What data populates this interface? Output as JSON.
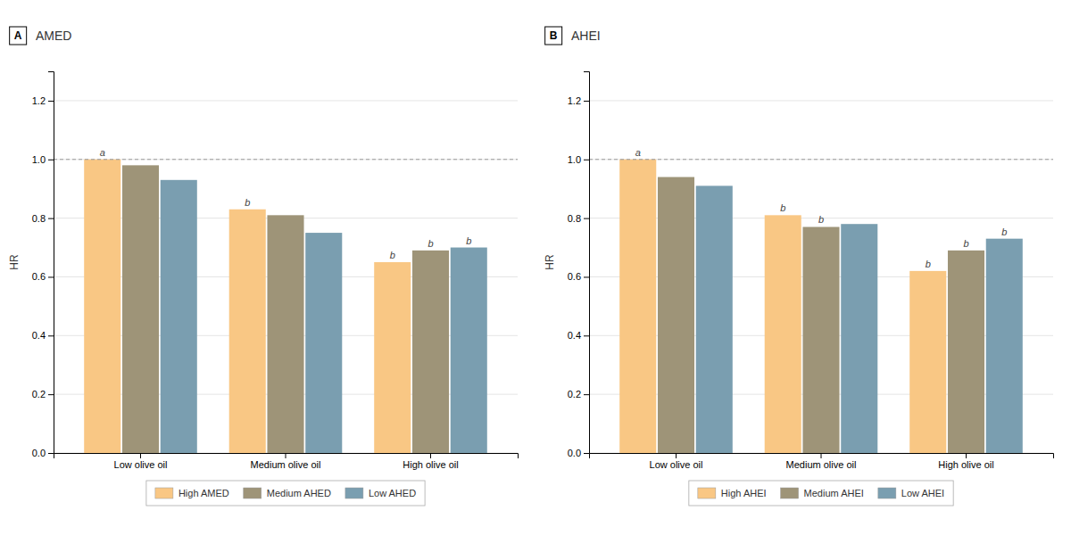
{
  "chart_data": [
    {
      "type": "bar",
      "panel_label": "A",
      "title": "AMED",
      "categories": [
        "Low olive oil",
        "Medium olive oil",
        "High olive oil"
      ],
      "series": [
        {
          "name": "High AMED",
          "color": "#F9C784",
          "values": [
            1.0,
            0.83,
            0.65
          ]
        },
        {
          "name": "Medium AHED",
          "color": "#9E9478",
          "values": [
            0.98,
            0.81,
            0.69
          ]
        },
        {
          "name": "Low AHED",
          "color": "#7A9EB0",
          "values": [
            0.93,
            0.75,
            0.7
          ]
        }
      ],
      "annotations": [
        [
          "a",
          null,
          null
        ],
        [
          "b",
          null,
          null
        ],
        [
          "b",
          "b",
          "b"
        ]
      ],
      "ylabel": "HR",
      "ylim": [
        0,
        1.3
      ],
      "yticks": [
        {
          "value": 0,
          "label": "0.0"
        },
        0.2,
        0.4,
        0.6,
        0.8,
        {
          "value": 1.0,
          "label": "1.0"
        },
        1.2
      ],
      "reference_line": 1.0,
      "grid": true,
      "legend": "bottom"
    },
    {
      "type": "bar",
      "panel_label": "B",
      "title": "AHEI",
      "categories": [
        "Low olive oil",
        "Medium olive oil",
        "High olive oil"
      ],
      "series": [
        {
          "name": "High AHEI",
          "color": "#F9C784",
          "values": [
            1.0,
            0.81,
            0.62
          ]
        },
        {
          "name": "Medium AHEI",
          "color": "#9E9478",
          "values": [
            0.94,
            0.77,
            0.69
          ]
        },
        {
          "name": "Low AHEI",
          "color": "#7A9EB0",
          "values": [
            0.91,
            0.78,
            0.73
          ]
        }
      ],
      "annotations": [
        [
          "a",
          null,
          null
        ],
        [
          "b",
          "b",
          null
        ],
        [
          "b",
          "b",
          "b"
        ]
      ],
      "ylabel": "HR",
      "ylim": [
        0,
        1.3
      ],
      "yticks": [
        {
          "value": 0,
          "label": "0.0"
        },
        0.2,
        0.4,
        0.6,
        0.8,
        {
          "value": 1.0,
          "label": "1.0"
        },
        1.2
      ],
      "reference_line": 1.0,
      "grid": true,
      "legend": "bottom"
    }
  ]
}
